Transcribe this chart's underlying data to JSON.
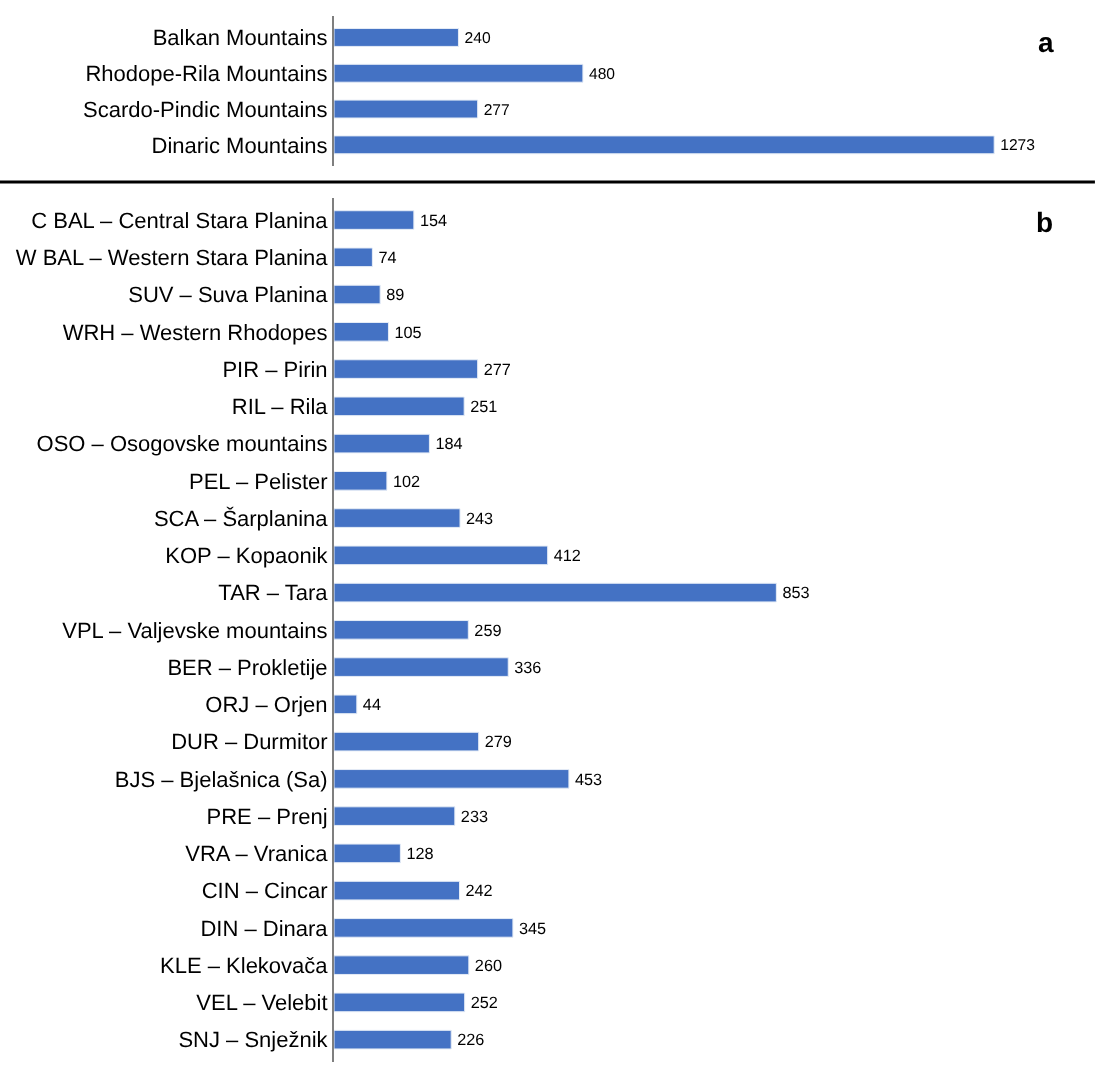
{
  "chart_data": [
    {
      "type": "bar",
      "orientation": "horizontal",
      "categories": [
        "Balkan Mountains",
        "Rhodope-Rila Mountains",
        "Scardo-Pindic Mountains",
        "Dinaric Mountains"
      ],
      "values": [
        240,
        480,
        277,
        1273
      ],
      "color": "#4472c4",
      "data_labels": true,
      "tick_labels": "y",
      "annotations": [
        "a"
      ]
    },
    {
      "type": "bar",
      "orientation": "horizontal",
      "categories": [
        "C BAL – Central Stara Planina",
        "W BAL – Western Stara Planina",
        "SUV – Suva Planina",
        "WRH – Western Rhodopes",
        "PIR – Pirin",
        "RIL – Rila",
        "OSO – Osogovske mountains",
        "PEL – Pelister",
        "SCA – Šarplanina",
        "KOP – Kopaonik",
        "TAR – Tara",
        "VPL – Valjevske mountains",
        "BER – Prokletije",
        "ORJ – Orjen",
        "DUR – Durmitor",
        "BJS – Bjelašnica (Sa)",
        "PRE – Prenj",
        "VRA – Vranica",
        "CIN – Cincar",
        "DIN – Dinara",
        "KLE – Klekovača",
        "VEL – Velebit",
        "SNJ – Snježnik"
      ],
      "values": [
        154,
        74,
        89,
        105,
        277,
        251,
        184,
        102,
        243,
        412,
        853,
        259,
        336,
        44,
        279,
        453,
        233,
        128,
        242,
        345,
        260,
        252,
        226
      ],
      "color": "#4472c4",
      "data_labels": true,
      "tick_labels": "y",
      "annotations": [
        "b"
      ]
    }
  ]
}
